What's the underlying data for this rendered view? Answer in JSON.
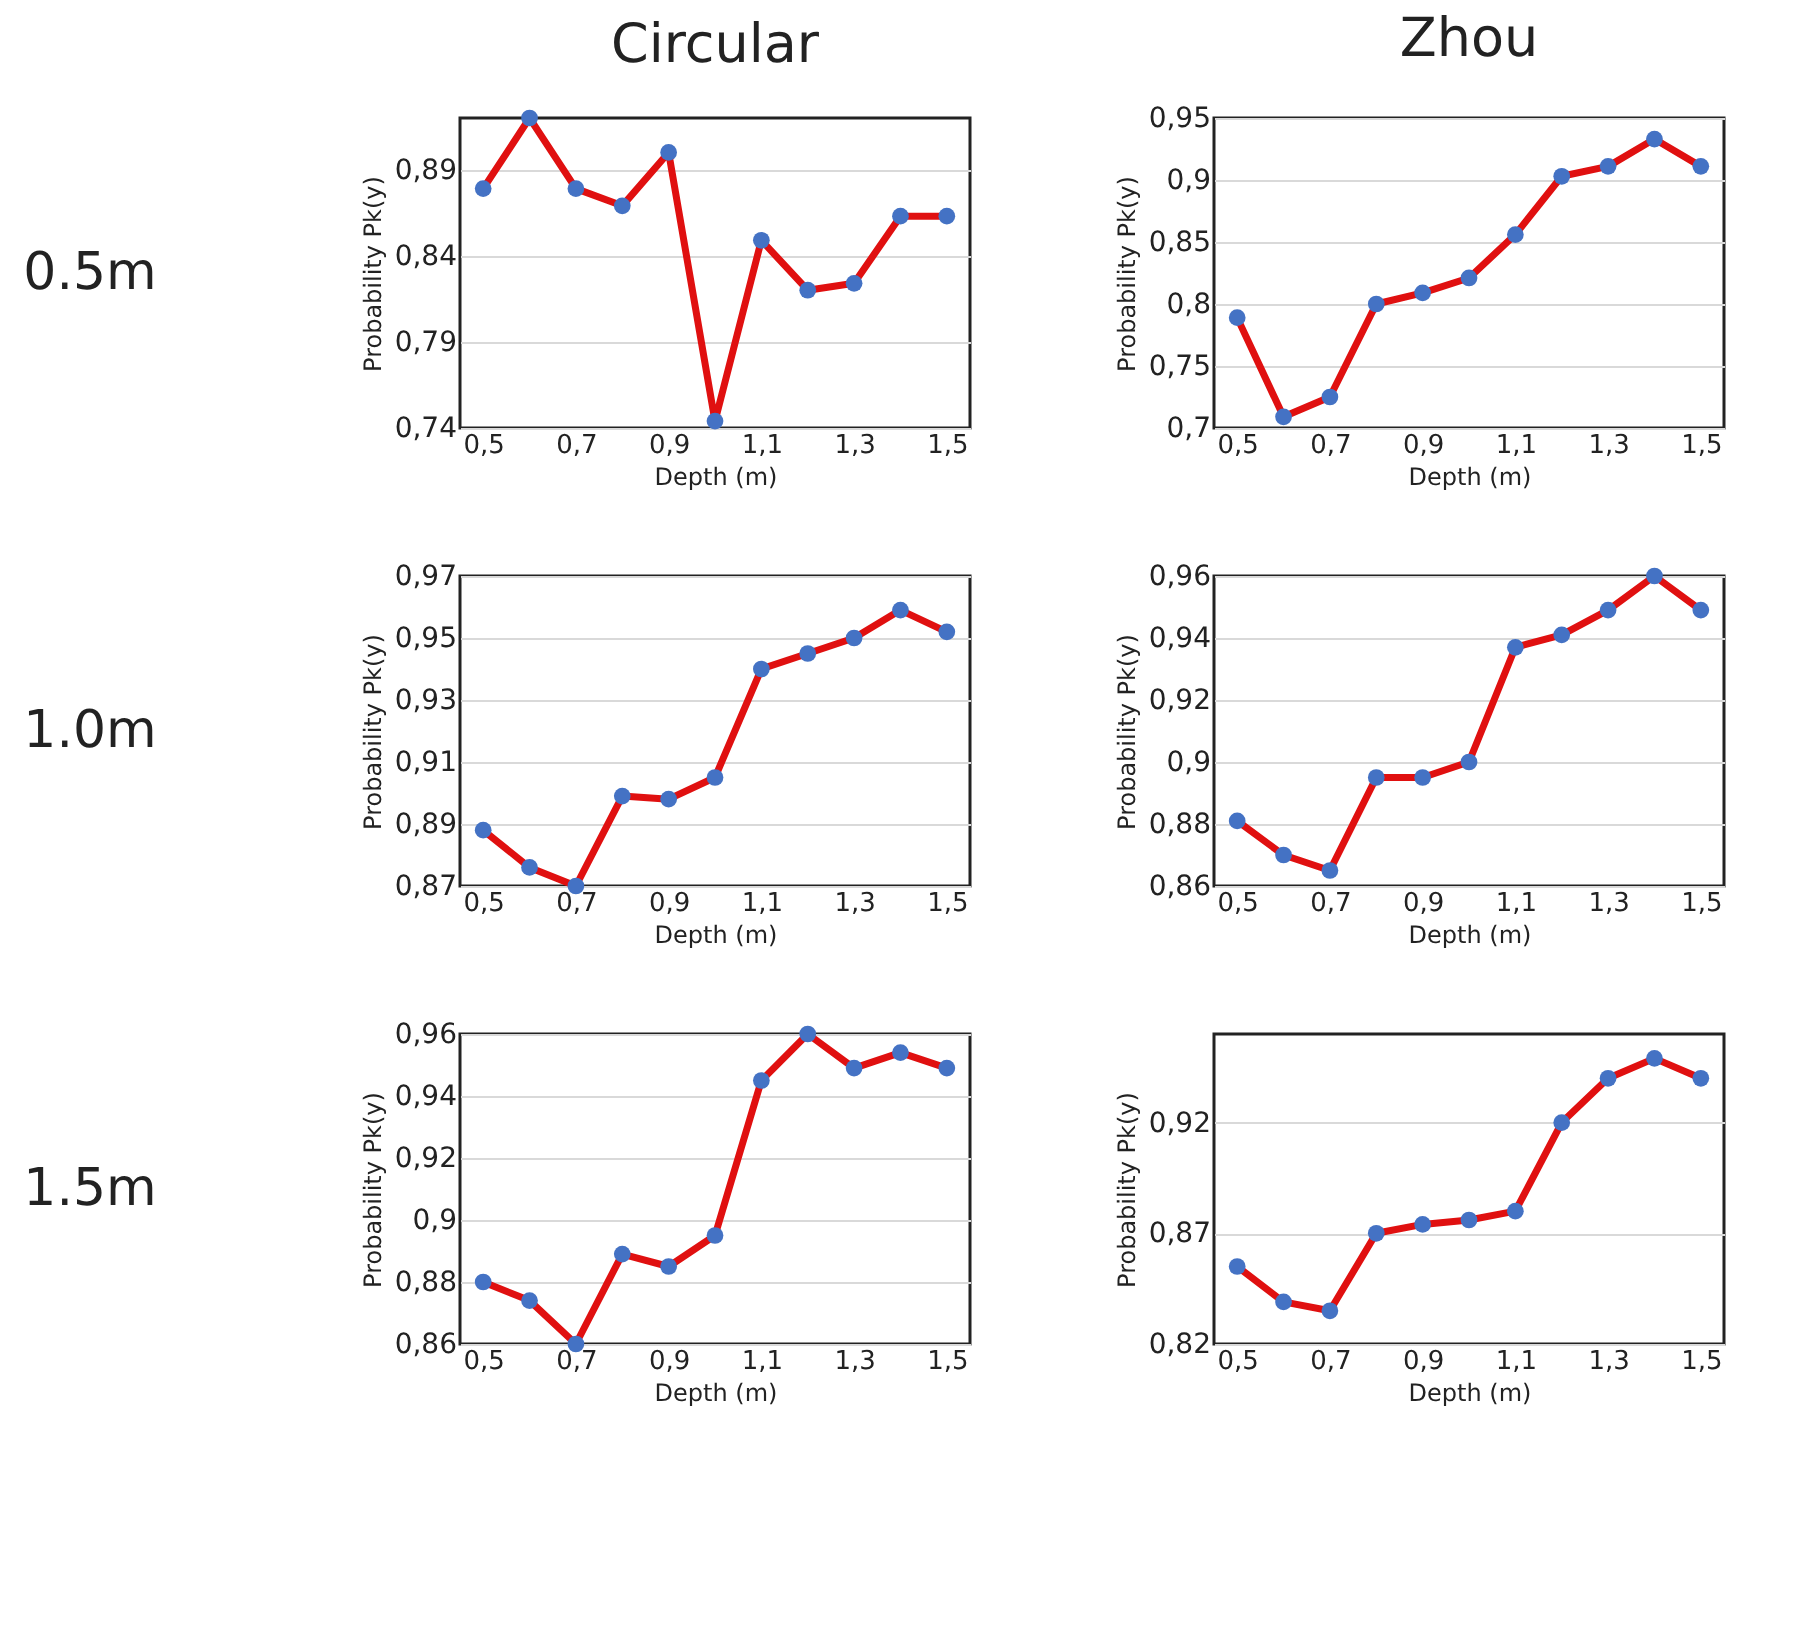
{
  "chart_data": [
    {
      "type": "line",
      "title": "Circular",
      "annotations": [
        "0.5m"
      ],
      "xlabel": "Depth (m)",
      "ylabel": "Probability Pk(y)",
      "categories": [
        "0,5",
        null,
        "0,7",
        null,
        "0,9",
        null,
        "1,1",
        null,
        "1,3",
        null,
        "1,5"
      ],
      "ylim": [
        0.74,
        0.92
      ],
      "yticks": [
        {
          "value": 0.74,
          "label": "0,74"
        },
        {
          "value": 0.79,
          "label": "0,79"
        },
        {
          "value": 0.84,
          "label": "0,84"
        },
        {
          "value": 0.89,
          "label": "0,89"
        }
      ],
      "grid": "y",
      "marker": "circle",
      "line_style": "solid",
      "series": [
        {
          "color": "#e01010",
          "colors": [
            "#4472c4",
            "#4472c4",
            "#4472c4",
            "#4472c4",
            "#4472c4",
            "#4472c4",
            "#4472c4",
            "#4472c4",
            "#4472c4",
            "#4472c4",
            "#4472c4"
          ],
          "values": [
            0.879,
            0.92,
            0.879,
            0.869,
            0.9,
            0.744,
            0.849,
            0.82,
            0.824,
            0.863,
            0.863
          ]
        }
      ]
    },
    {
      "type": "line",
      "title": "Zhou",
      "xlabel": "Depth (m)",
      "ylabel": "Probability Pk(y)",
      "categories": [
        "0,5",
        null,
        "0,7",
        null,
        "0,9",
        null,
        "1,1",
        null,
        "1,3",
        null,
        "1,5"
      ],
      "ylim": [
        0.7,
        0.95
      ],
      "yticks": [
        {
          "value": 0.7,
          "label": "0,7"
        },
        {
          "value": 0.75,
          "label": "0,75"
        },
        {
          "value": 0.8,
          "label": "0,8"
        },
        {
          "value": 0.85,
          "label": "0,85"
        },
        {
          "value": 0.9,
          "label": "0,9"
        },
        {
          "value": 0.95,
          "label": "0,95"
        }
      ],
      "grid": "y",
      "marker": "circle",
      "line_style": "solid",
      "series": [
        {
          "color": "#e01010",
          "colors": [
            "#4472c4",
            "#4472c4",
            "#4472c4",
            "#4472c4",
            "#4472c4",
            "#4472c4",
            "#4472c4",
            "#4472c4",
            "#4472c4",
            "#4472c4",
            "#4472c4"
          ],
          "values": [
            0.789,
            0.709,
            0.725,
            0.8,
            0.809,
            0.821,
            0.856,
            0.903,
            0.911,
            0.933,
            0.911
          ]
        }
      ]
    },
    {
      "type": "line",
      "annotations": [
        "1.0m"
      ],
      "xlabel": "Depth (m)",
      "ylabel": "Probability Pk(y)",
      "categories": [
        "0,5",
        null,
        "0,7",
        null,
        "0,9",
        null,
        "1,1",
        null,
        "1,3",
        null,
        "1,5"
      ],
      "ylim": [
        0.87,
        0.97
      ],
      "yticks": [
        {
          "value": 0.87,
          "label": "0,87"
        },
        {
          "value": 0.89,
          "label": "0,89"
        },
        {
          "value": 0.91,
          "label": "0,91"
        },
        {
          "value": 0.93,
          "label": "0,93"
        },
        {
          "value": 0.95,
          "label": "0,95"
        },
        {
          "value": 0.97,
          "label": "0,97"
        }
      ],
      "grid": "y",
      "marker": "circle",
      "line_style": "solid",
      "series": [
        {
          "color": "#e01010",
          "colors": [
            "#4472c4",
            "#4472c4",
            "#4472c4",
            "#4472c4",
            "#4472c4",
            "#4472c4",
            "#4472c4",
            "#4472c4",
            "#4472c4",
            "#4472c4",
            "#4472c4"
          ],
          "values": [
            0.888,
            0.876,
            0.87,
            0.899,
            0.898,
            0.905,
            0.94,
            0.945,
            0.95,
            0.959,
            0.952
          ]
        }
      ]
    },
    {
      "type": "line",
      "xlabel": "Depth (m)",
      "ylabel": "Probability Pk(y)",
      "categories": [
        "0,5",
        null,
        "0,7",
        null,
        "0,9",
        null,
        "1,1",
        null,
        "1,3",
        null,
        "1,5"
      ],
      "ylim": [
        0.86,
        0.96
      ],
      "yticks": [
        {
          "value": 0.86,
          "label": "0,86"
        },
        {
          "value": 0.88,
          "label": "0,88"
        },
        {
          "value": 0.9,
          "label": "0,9"
        },
        {
          "value": 0.92,
          "label": "0,92"
        },
        {
          "value": 0.94,
          "label": "0,94"
        },
        {
          "value": 0.96,
          "label": "0,96"
        }
      ],
      "grid": "y",
      "marker": "circle",
      "line_style": "solid",
      "series": [
        {
          "color": "#e01010",
          "colors": [
            "#4472c4",
            "#4472c4",
            "#4472c4",
            "#4472c4",
            "#4472c4",
            "#4472c4",
            "#4472c4",
            "#4472c4",
            "#4472c4",
            "#4472c4",
            "#4472c4"
          ],
          "values": [
            0.881,
            0.87,
            0.865,
            0.895,
            0.895,
            0.9,
            0.937,
            0.941,
            0.949,
            0.96,
            0.949
          ]
        }
      ]
    },
    {
      "type": "line",
      "annotations": [
        "1.5m"
      ],
      "xlabel": "Depth (m)",
      "ylabel": "Probability Pk(y)",
      "categories": [
        "0,5",
        null,
        "0,7",
        null,
        "0,9",
        null,
        "1,1",
        null,
        "1,3",
        null,
        "1,5"
      ],
      "ylim": [
        0.86,
        0.96
      ],
      "yticks": [
        {
          "value": 0.86,
          "label": "0,86"
        },
        {
          "value": 0.88,
          "label": "0,88"
        },
        {
          "value": 0.9,
          "label": "0,9"
        },
        {
          "value": 0.92,
          "label": "0,92"
        },
        {
          "value": 0.94,
          "label": "0,94"
        },
        {
          "value": 0.96,
          "label": "0,96"
        }
      ],
      "grid": "y",
      "marker": "circle",
      "line_style": "solid",
      "series": [
        {
          "color": "#e01010",
          "colors": [
            "#4472c4",
            "#4472c4",
            "#4472c4",
            "#4472c4",
            "#4472c4",
            "#4472c4",
            "#4472c4",
            "#4472c4",
            "#4472c4",
            "#4472c4",
            "#4472c4"
          ],
          "values": [
            0.88,
            0.874,
            0.86,
            0.889,
            0.885,
            0.895,
            0.945,
            0.96,
            0.949,
            0.954,
            0.949
          ]
        }
      ]
    },
    {
      "type": "line",
      "xlabel": "Depth (m)",
      "ylabel": "Probability Pk(y)",
      "categories": [
        "0,5",
        null,
        "0,7",
        null,
        "0,9",
        null,
        "1,1",
        null,
        "1,3",
        null,
        "1,5"
      ],
      "ylim": [
        0.82,
        0.96
      ],
      "yticks": [
        {
          "value": 0.82,
          "label": "0,82"
        },
        {
          "value": 0.87,
          "label": "0,87"
        },
        {
          "value": 0.92,
          "label": "0,92"
        }
      ],
      "grid": "y",
      "marker": "circle",
      "line_style": "solid",
      "series": [
        {
          "color": "#e01010",
          "colors": [
            "#4472c4",
            "#4472c4",
            "#4472c4",
            "#4472c4",
            "#4472c4",
            "#4472c4",
            "#4472c4",
            "#4472c4",
            "#4472c4",
            "#4472c4",
            "#4472c4"
          ],
          "values": [
            0.855,
            0.839,
            0.835,
            0.87,
            0.874,
            0.876,
            0.88,
            0.92,
            0.94,
            0.949,
            0.94
          ]
        }
      ]
    }
  ]
}
